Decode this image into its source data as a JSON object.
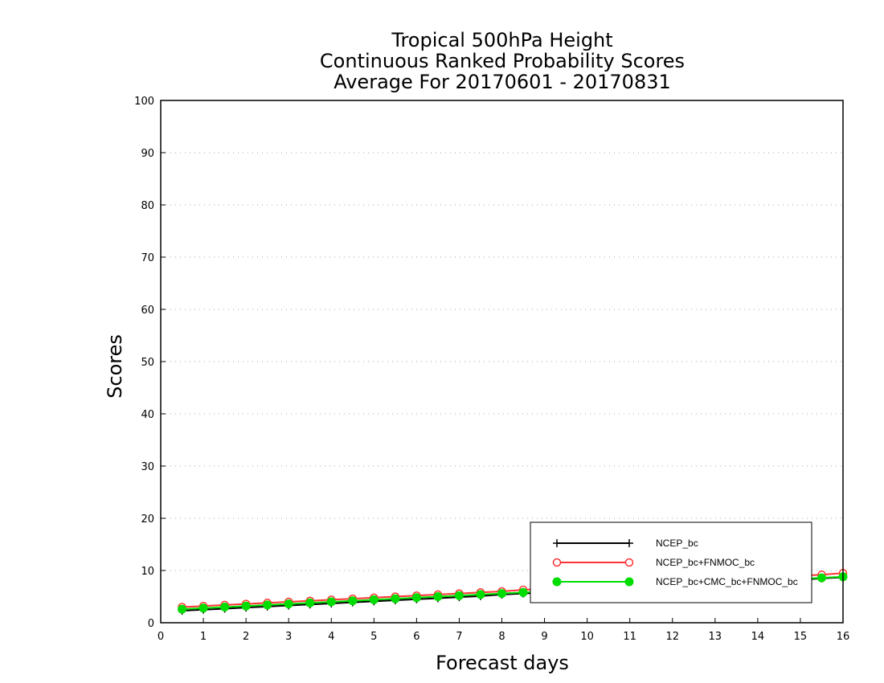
{
  "chart_data": {
    "type": "line",
    "title": [
      "Tropical 500hPa Height",
      "Continuous Ranked Probability Scores",
      "Average For 20170601 - 20170831"
    ],
    "xlabel": "Forecast days",
    "ylabel": "Scores",
    "xlim": [
      0,
      16
    ],
    "ylim": [
      0,
      100
    ],
    "xticks": [
      0,
      1,
      2,
      3,
      4,
      5,
      6,
      7,
      8,
      9,
      10,
      11,
      12,
      13,
      14,
      15,
      16
    ],
    "yticks": [
      0,
      10,
      20,
      30,
      40,
      50,
      60,
      70,
      80,
      90,
      100
    ],
    "grid": "horizontal dotted",
    "legend_position": "bottom-right",
    "x": [
      0.5,
      1,
      1.5,
      2,
      2.5,
      3,
      3.5,
      4,
      4.5,
      5,
      5.5,
      6,
      6.5,
      7,
      7.5,
      8,
      8.5,
      9,
      9.5,
      10,
      10.5,
      11,
      11.5,
      12,
      12.5,
      13,
      13.5,
      14,
      14.5,
      15,
      15.5,
      16
    ],
    "series": [
      {
        "name": "NCEP_bc",
        "color": "#000000",
        "marker": "plus",
        "values": [
          2.3,
          2.5,
          2.7,
          2.9,
          3.1,
          3.3,
          3.5,
          3.7,
          3.9,
          4.1,
          4.3,
          4.5,
          4.7,
          4.9,
          5.1,
          5.4,
          5.6,
          5.8,
          6.0,
          6.2,
          6.4,
          6.6,
          6.8,
          7.0,
          7.2,
          7.4,
          7.6,
          7.8,
          8.0,
          8.2,
          8.5,
          8.7
        ]
      },
      {
        "name": "NCEP_bc+FNMOC_bc",
        "color": "#ff3333",
        "marker": "open-circle",
        "values": [
          3.0,
          3.2,
          3.4,
          3.6,
          3.8,
          4.0,
          4.2,
          4.4,
          4.6,
          4.8,
          5.0,
          5.2,
          5.4,
          5.6,
          5.8,
          6.0,
          6.3,
          6.5,
          6.7,
          6.9,
          7.1,
          7.3,
          7.5,
          7.7,
          7.9,
          8.1,
          8.3,
          8.5,
          8.7,
          9.0,
          9.2,
          9.5
        ]
      },
      {
        "name": "NCEP_bc+CMC_bc+FNMOC_bc",
        "color": "#00dd00",
        "marker": "filled-circle",
        "values": [
          2.6,
          2.8,
          3.0,
          3.2,
          3.4,
          3.6,
          3.8,
          4.0,
          4.2,
          4.4,
          4.6,
          4.8,
          5.0,
          5.2,
          5.4,
          5.6,
          5.8,
          6.0,
          6.2,
          6.4,
          6.6,
          6.8,
          7.0,
          7.2,
          7.4,
          7.6,
          7.8,
          8.0,
          8.2,
          8.4,
          8.6,
          8.8
        ]
      }
    ]
  }
}
